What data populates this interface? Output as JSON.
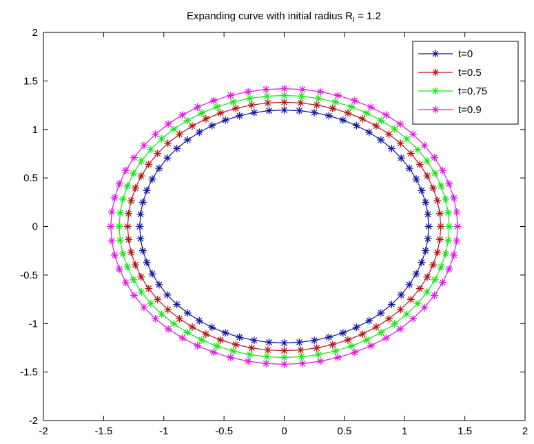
{
  "chart_data": {
    "type": "line",
    "title": "Expanding curve with initial radius R",
    "title_subscript": "I",
    "title_suffix": " = 1.2",
    "xlabel": "",
    "ylabel": "",
    "xlim": [
      -2,
      2
    ],
    "ylim": [
      -2,
      2
    ],
    "xticks": [
      -2,
      -1.5,
      -1,
      -0.5,
      0,
      0.5,
      1,
      1.5,
      2
    ],
    "yticks": [
      -2,
      -1.5,
      -1,
      -0.5,
      0,
      0.5,
      1,
      1.5,
      2
    ],
    "xtick_labels": [
      "-2",
      "-1.5",
      "-1",
      "-0.5",
      "0",
      "0.5",
      "1",
      "1.5",
      "2"
    ],
    "ytick_labels": [
      "-2",
      "-1.5",
      "-1",
      "-0.5",
      "0",
      "0.5",
      "1",
      "1.5",
      "2"
    ],
    "grid": false,
    "legend_position": "top-right",
    "marker": "asterisk",
    "points_per_curve": 60,
    "series": [
      {
        "name": "t=0",
        "color": "#1414a0",
        "rx": 1.2,
        "ry": 1.2
      },
      {
        "name": "t=0.5",
        "color": "#b41414",
        "rx": 1.3,
        "ry": 1.28
      },
      {
        "name": "t=0.75",
        "color": "#14e614",
        "rx": 1.37,
        "ry": 1.35
      },
      {
        "name": "t=0.9",
        "color": "#e614e6",
        "rx": 1.44,
        "ry": 1.42
      }
    ]
  }
}
